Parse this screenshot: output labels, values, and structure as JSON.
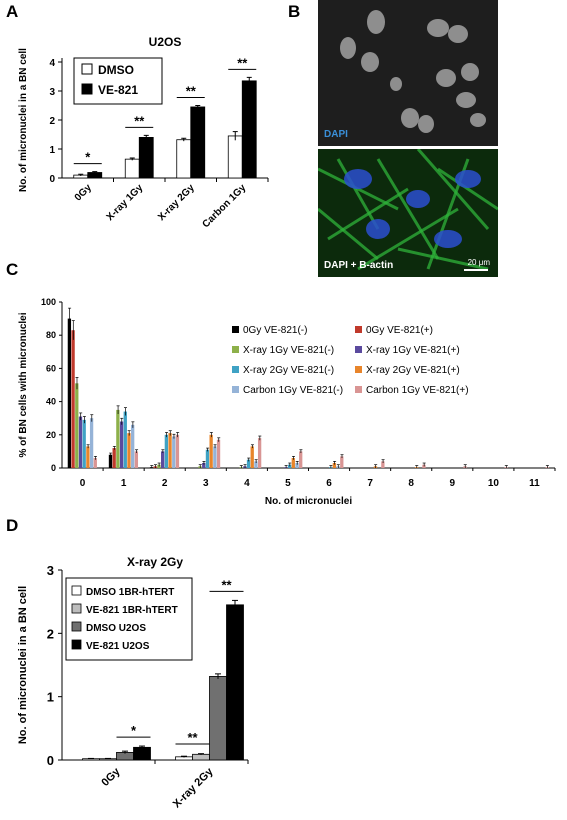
{
  "panels": {
    "a": "A",
    "b": "B",
    "c": "C",
    "d": "D"
  },
  "micrographs": {
    "top_label": "DAPI",
    "top_label_color": "#3a8fd8",
    "bottom_label": "DAPI + B-actin",
    "scale_bar": "20 μm",
    "nucleus_color": "#2c4fd0",
    "actin_color": "#2fb33a"
  },
  "chart_data": [
    {
      "id": "A",
      "type": "bar",
      "title": "U2OS",
      "ylabel": "No. of micronuclei in a BN cell",
      "xlabel": "",
      "ylim": [
        0,
        4
      ],
      "yticks": [
        "0",
        "1",
        "2",
        "3",
        "4"
      ],
      "categories": [
        "0Gy",
        "X-ray 1Gy",
        "X-ray 2Gy",
        "Carbon 1Gy"
      ],
      "series": [
        {
          "name": "DMSO",
          "color": "#ffffff",
          "values": [
            0.1,
            0.65,
            1.32,
            1.45
          ],
          "errors": [
            0.03,
            0.04,
            0.05,
            0.15
          ]
        },
        {
          "name": "VE-821",
          "color": "#000000",
          "values": [
            0.19,
            1.4,
            2.45,
            3.35
          ],
          "errors": [
            0.03,
            0.07,
            0.05,
            0.12
          ]
        }
      ],
      "significance": [
        "*",
        "**",
        "**",
        "**"
      ],
      "legend_position": "top-left"
    },
    {
      "id": "C",
      "type": "bar",
      "title": "",
      "ylabel": "% of BN cells with micronuclei",
      "xlabel": "No. of micronuclei",
      "ylim": [
        0,
        100
      ],
      "yticks": [
        "0",
        "20",
        "40",
        "60",
        "80",
        "100"
      ],
      "categories": [
        "0",
        "1",
        "2",
        "3",
        "4",
        "5",
        "6",
        "7",
        "8",
        "9",
        "10",
        "11"
      ],
      "series": [
        {
          "name": "0Gy VE-821(-)",
          "color": "#000000",
          "values": [
            90,
            8,
            0.5,
            0,
            0,
            0,
            0,
            0,
            0,
            0,
            0,
            0
          ]
        },
        {
          "name": "0Gy VE-821(+)",
          "color": "#c0392b",
          "values": [
            83,
            12,
            1,
            0,
            0,
            0,
            0,
            0,
            0,
            0,
            0,
            0
          ]
        },
        {
          "name": "X-ray 1Gy VE-821(-)",
          "color": "#8db04a",
          "values": [
            51,
            35,
            2,
            1,
            0.5,
            0,
            0,
            0,
            0,
            0,
            0,
            0
          ]
        },
        {
          "name": "X-ray 1Gy VE-821(+)",
          "color": "#5b4a9e",
          "values": [
            31,
            28,
            10,
            3,
            1,
            0.5,
            0,
            0,
            0,
            0,
            0,
            0
          ]
        },
        {
          "name": "X-ray 2Gy VE-821(-)",
          "color": "#3fa2c4",
          "values": [
            29,
            34,
            20,
            11,
            5,
            2,
            0.5,
            0,
            0,
            0,
            0,
            0
          ]
        },
        {
          "name": "X-ray 2Gy VE-821(+)",
          "color": "#e8852b",
          "values": [
            13,
            21,
            21,
            20,
            13,
            6,
            3,
            1,
            0.5,
            0,
            0,
            0
          ]
        },
        {
          "name": "Carbon 1Gy VE-821(-)",
          "color": "#95b3d7",
          "values": [
            30,
            26,
            19,
            13,
            4,
            3,
            1,
            0,
            0,
            0,
            0,
            0
          ]
        },
        {
          "name": "Carbon 1Gy VE-821(+)",
          "color": "#d99594",
          "values": [
            6,
            10,
            20,
            17,
            18,
            10,
            7,
            4,
            2,
            1,
            0.5,
            0.5
          ]
        }
      ],
      "legend_position": "right"
    },
    {
      "id": "D",
      "type": "bar",
      "title": "X-ray 2Gy",
      "ylabel": "No. of micronuclei in a BN cell",
      "xlabel": "",
      "ylim": [
        0,
        3
      ],
      "yticks": [
        "0",
        "1",
        "2",
        "3"
      ],
      "categories": [
        "0Gy",
        "X-ray 2Gy"
      ],
      "series": [
        {
          "name": "DMSO 1BR-hTERT",
          "color": "#ffffff",
          "values": [
            0.02,
            0.05
          ],
          "errors": [
            0.005,
            0.01
          ]
        },
        {
          "name": "VE-821 1BR-hTERT",
          "color": "#bdbdbd",
          "values": [
            0.02,
            0.09
          ],
          "errors": [
            0.005,
            0.01
          ]
        },
        {
          "name": "DMSO U2OS",
          "color": "#707070",
          "values": [
            0.12,
            1.32
          ],
          "errors": [
            0.02,
            0.04
          ]
        },
        {
          "name": "VE-821 U2OS",
          "color": "#000000",
          "values": [
            0.2,
            2.45
          ],
          "errors": [
            0.02,
            0.07
          ]
        }
      ],
      "significance": [
        "*",
        "**"
      ],
      "legend_position": "top-left"
    }
  ]
}
